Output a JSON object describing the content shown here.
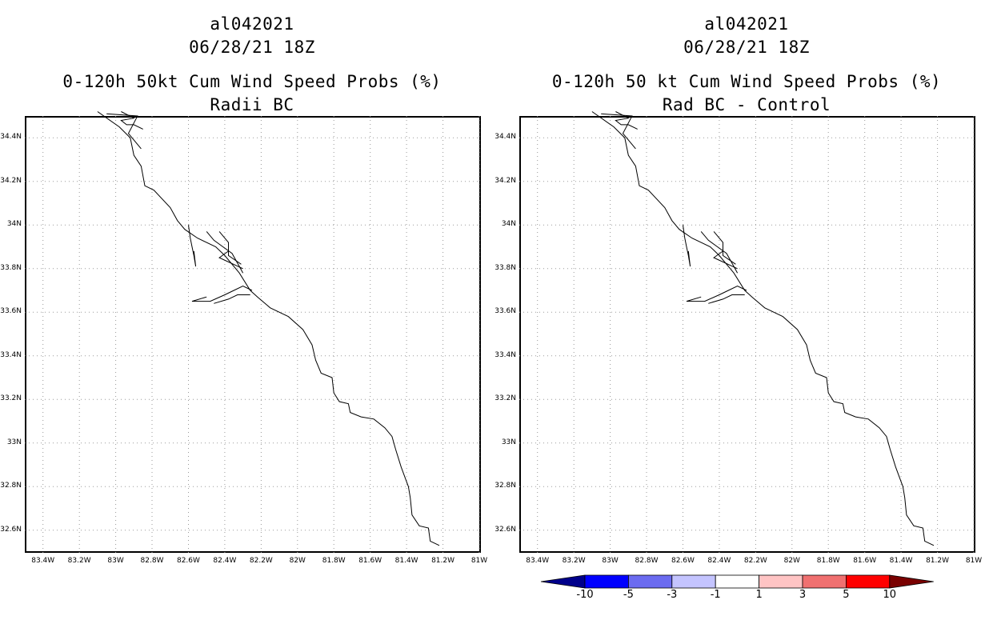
{
  "panels": [
    {
      "id": "left",
      "storm_id": "al042021",
      "valid_time": "06/28/21 18Z",
      "product_title": "0-120h 50kt Cum Wind Speed Probs (%)",
      "subtitle": "Radii BC"
    },
    {
      "id": "right",
      "storm_id": "al042021",
      "valid_time": "06/28/21 18Z",
      "product_title": "0-120h 50 kt Cum Wind Speed Probs (%)",
      "subtitle": "Rad BC - Control"
    }
  ],
  "map": {
    "lat_labels": [
      "34.4N",
      "34.2N",
      "34N",
      "33.8N",
      "33.6N",
      "33.4N",
      "33.2N",
      "33N",
      "32.8N",
      "32.6N"
    ],
    "lon_labels": [
      "83.4W",
      "83.2W",
      "83W",
      "82.8W",
      "82.6W",
      "82.4W",
      "82.2W",
      "82W",
      "81.8W",
      "81.6W",
      "81.4W",
      "81.2W",
      "81W"
    ],
    "grid": "dotted"
  },
  "colorbar": {
    "labels": [
      "-10",
      "-5",
      "-3",
      "-1",
      "1",
      "3",
      "5",
      "10"
    ],
    "colors": [
      "#00008b",
      "#0000ff",
      "#6b6bf0",
      "#c4c4ff",
      "#ffffff",
      "#ffc4c4",
      "#f07070",
      "#ff0000",
      "#7a0000"
    ]
  }
}
